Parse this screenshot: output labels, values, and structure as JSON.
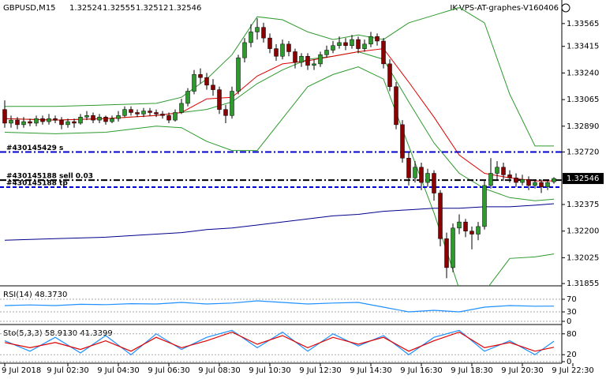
{
  "chart_data": [
    {
      "type": "candlestick",
      "symbol": "GBPUSD,M15",
      "expert": "IK-VPS-AT-graphes-V160406",
      "bull_color": "#2e9a2e",
      "bear_color": "#8b0000",
      "ylim": [
        1.3184,
        1.3372
      ],
      "xlim": [
        -0.75,
        88.25
      ],
      "yticks": [
        1.33565,
        1.33415,
        {
          "value": 1.3324,
          "label": "1.33240"
        },
        1.33065,
        {
          "value": 1.3289,
          "label": "1.32890"
        },
        {
          "value": 1.3272,
          "label": "1.32720"
        },
        1.32375,
        {
          "value": 1.322,
          "label": "1.32200"
        },
        1.32025,
        1.31855
      ],
      "xticks": [
        {
          "value": 0,
          "label": "9 Jul 2018"
        },
        {
          "value": 10,
          "label": "9 Jul 02:30"
        },
        {
          "value": 18,
          "label": "9 Jul 04:30"
        },
        {
          "value": 26,
          "label": "9 Jul 06:30"
        },
        {
          "value": 34,
          "label": "9 Jul 08:30"
        },
        {
          "value": 42,
          "label": "9 Jul 10:30"
        },
        {
          "value": 50,
          "label": "9 Jul 12:30"
        },
        {
          "value": 58,
          "label": "9 Jul 14:30"
        },
        {
          "value": 66,
          "label": "9 Jul 16:30"
        },
        {
          "value": 74,
          "label": "9 Jul 18:30"
        },
        {
          "value": 82,
          "label": "9 Jul 20:30"
        },
        {
          "value": 90,
          "label": "9 Jul 22:30"
        }
      ],
      "open": [
        1.33,
        1.3291,
        1.3293,
        1.329,
        1.3292,
        1.3291,
        1.3294,
        1.3292,
        1.3294,
        1.3293,
        1.329,
        1.3292,
        1.3291,
        1.3295,
        1.3296,
        1.3293,
        1.3295,
        1.3292,
        1.3294,
        1.3296,
        1.33,
        1.3298,
        1.3297,
        1.3299,
        1.3298,
        1.3297,
        1.3296,
        1.3293,
        1.3298,
        1.3304,
        1.3312,
        1.3323,
        1.3321,
        1.3316,
        1.3313,
        1.33,
        1.3296,
        1.3312,
        1.3334,
        1.3344,
        1.3351,
        1.3354,
        1.3347,
        1.334,
        1.3335,
        1.3343,
        1.3338,
        1.3331,
        1.3335,
        1.3329,
        1.333,
        1.3336,
        1.3339,
        1.3342,
        1.3344,
        1.3342,
        1.3346,
        1.334,
        1.3343,
        1.3348,
        1.3345,
        1.333,
        1.3315,
        1.329,
        1.3268,
        1.3255,
        1.3262,
        1.3252,
        1.3258,
        1.3245,
        1.3215,
        1.3196,
        1.3222,
        1.3226,
        1.322,
        1.3218,
        1.3223,
        1.325,
        1.3258,
        1.3262,
        1.3257,
        1.3255,
        1.3252,
        1.3254,
        1.325,
        1.3252,
        1.3249,
        1.32524
      ],
      "high": [
        1.3306,
        1.3296,
        1.3295,
        1.3295,
        1.3294,
        1.3296,
        1.3296,
        1.3297,
        1.3296,
        1.3295,
        1.3294,
        1.3294,
        1.3297,
        1.3299,
        1.3298,
        1.3297,
        1.3296,
        1.3296,
        1.3299,
        1.3302,
        1.3302,
        1.33,
        1.3301,
        1.3301,
        1.33,
        1.3299,
        1.3298,
        1.33,
        1.3307,
        1.3314,
        1.3326,
        1.3327,
        1.3324,
        1.332,
        1.3315,
        1.3303,
        1.3315,
        1.3336,
        1.3347,
        1.3356,
        1.336,
        1.3357,
        1.335,
        1.3343,
        1.3346,
        1.3345,
        1.334,
        1.3337,
        1.3337,
        1.3333,
        1.3338,
        1.3342,
        1.3345,
        1.3348,
        1.3347,
        1.3349,
        1.3348,
        1.3346,
        1.3351,
        1.335,
        1.3347,
        1.3333,
        1.3318,
        1.3293,
        1.3272,
        1.3266,
        1.3265,
        1.3261,
        1.326,
        1.3247,
        1.3219,
        1.3225,
        1.3231,
        1.3228,
        1.3223,
        1.3226,
        1.3253,
        1.3268,
        1.3266,
        1.3265,
        1.326,
        1.3258,
        1.3257,
        1.3256,
        1.3254,
        1.3254,
        1.3254,
        1.32555
      ],
      "low": [
        1.3288,
        1.3288,
        1.3287,
        1.3288,
        1.3289,
        1.3289,
        1.329,
        1.329,
        1.3291,
        1.3287,
        1.3288,
        1.3288,
        1.329,
        1.3293,
        1.3291,
        1.3291,
        1.329,
        1.3291,
        1.3292,
        1.3295,
        1.3296,
        1.3295,
        1.3295,
        1.3296,
        1.3295,
        1.3294,
        1.3291,
        1.3292,
        1.3297,
        1.3302,
        1.331,
        1.3317,
        1.3313,
        1.3309,
        1.3297,
        1.3291,
        1.3294,
        1.331,
        1.3331,
        1.3341,
        1.3346,
        1.3344,
        1.3337,
        1.3332,
        1.3333,
        1.3335,
        1.3327,
        1.3328,
        1.3326,
        1.3326,
        1.3328,
        1.3334,
        1.3337,
        1.334,
        1.3339,
        1.334,
        1.3337,
        1.3338,
        1.3341,
        1.3342,
        1.3327,
        1.3312,
        1.3287,
        1.3265,
        1.325,
        1.3252,
        1.3247,
        1.3249,
        1.324,
        1.321,
        1.3189,
        1.3193,
        1.3218,
        1.3216,
        1.3208,
        1.3214,
        1.3221,
        1.3248,
        1.3254,
        1.3253,
        1.3252,
        1.3249,
        1.325,
        1.3247,
        1.3248,
        1.3245,
        1.3247,
        1.32512
      ],
      "close": [
        1.3291,
        1.3293,
        1.329,
        1.3292,
        1.3291,
        1.3294,
        1.3292,
        1.3294,
        1.3293,
        1.329,
        1.3292,
        1.3291,
        1.3295,
        1.3296,
        1.3293,
        1.3295,
        1.3292,
        1.3294,
        1.3296,
        1.33,
        1.3298,
        1.3297,
        1.3299,
        1.3298,
        1.3297,
        1.3296,
        1.3293,
        1.3298,
        1.3304,
        1.3312,
        1.3323,
        1.3321,
        1.3316,
        1.3313,
        1.33,
        1.3296,
        1.3312,
        1.3334,
        1.3344,
        1.3351,
        1.3354,
        1.3347,
        1.334,
        1.3335,
        1.3343,
        1.3338,
        1.3331,
        1.3335,
        1.3329,
        1.333,
        1.3336,
        1.3339,
        1.3342,
        1.3344,
        1.3342,
        1.3346,
        1.334,
        1.3343,
        1.3348,
        1.3345,
        1.333,
        1.3315,
        1.329,
        1.3268,
        1.3255,
        1.3262,
        1.3252,
        1.3258,
        1.3245,
        1.3215,
        1.3196,
        1.3222,
        1.3226,
        1.322,
        1.3218,
        1.3223,
        1.325,
        1.3258,
        1.3262,
        1.3257,
        1.3255,
        1.3252,
        1.3254,
        1.325,
        1.3252,
        1.3249,
        1.3252,
        1.32546
      ],
      "overlays": [
        {
          "color": "#2e9a2e",
          "x": [
            0,
            8,
            16,
            24,
            28,
            32,
            36,
            40,
            44,
            48,
            52,
            56,
            60,
            64,
            68,
            72,
            76,
            80,
            84,
            87
          ],
          "values": [
            1.3302,
            1.3302,
            1.3303,
            1.3304,
            1.3308,
            1.332,
            1.3336,
            1.3361,
            1.3359,
            1.3351,
            1.3346,
            1.3349,
            1.3346,
            1.3357,
            1.3362,
            1.3367,
            1.3357,
            1.331,
            1.3276,
            1.3276
          ]
        },
        {
          "color": "#2e9a2e",
          "x": [
            0,
            8,
            16,
            24,
            28,
            32,
            36,
            40,
            44,
            48,
            52,
            56,
            60,
            64,
            68,
            72,
            76,
            80,
            84,
            87
          ],
          "values": [
            1.3294,
            1.3293,
            1.3294,
            1.3296,
            1.3298,
            1.33,
            1.3305,
            1.3317,
            1.3326,
            1.3333,
            1.3335,
            1.3338,
            1.3333,
            1.3305,
            1.3278,
            1.3258,
            1.3248,
            1.3242,
            1.324,
            1.3241
          ]
        },
        {
          "color": "#2e9a2e",
          "x": [
            0,
            8,
            16,
            24,
            28,
            32,
            36,
            40,
            44,
            48,
            52,
            56,
            60,
            64,
            68,
            72,
            76,
            80,
            84,
            87
          ],
          "values": [
            1.3285,
            1.3284,
            1.3285,
            1.3289,
            1.3288,
            1.3279,
            1.3273,
            1.3273,
            1.3294,
            1.3315,
            1.3323,
            1.3328,
            1.332,
            1.3276,
            1.3232,
            1.3182,
            1.318,
            1.3202,
            1.3203,
            1.3205
          ]
        },
        {
          "color": "#e00000",
          "x": [
            0,
            8,
            16,
            24,
            28,
            32,
            36,
            40,
            44,
            48,
            52,
            56,
            60,
            64,
            68,
            72,
            76,
            80,
            84,
            87
          ],
          "values": [
            1.3294,
            1.3293,
            1.3294,
            1.3296,
            1.3298,
            1.3307,
            1.3308,
            1.3322,
            1.333,
            1.3332,
            1.3335,
            1.3338,
            1.334,
            1.3318,
            1.3295,
            1.327,
            1.3258,
            1.3255,
            1.3253,
            1.3253
          ]
        },
        {
          "color": "#00008b",
          "x": [
            0,
            8,
            16,
            24,
            28,
            32,
            36,
            40,
            44,
            48,
            52,
            56,
            60,
            64,
            68,
            72,
            76,
            80,
            84,
            87
          ],
          "values": [
            1.3214,
            1.3215,
            1.3216,
            1.3218,
            1.3219,
            1.3221,
            1.3222,
            1.3224,
            1.3226,
            1.3228,
            1.323,
            1.3231,
            1.3233,
            1.3234,
            1.3235,
            1.3235,
            1.3236,
            1.3236,
            1.3237,
            1.3238
          ]
        }
      ],
      "levels": [
        {
          "label": "#430145429 s",
          "value": 1.3272,
          "color": "#0000cd",
          "style": "dash-dot"
        },
        {
          "label": "#430145188 sell 0.03",
          "value": 1.32535,
          "color": "#000000",
          "style": "dash-dot"
        },
        {
          "label": "#430145188 tp",
          "value": 1.32489,
          "color": "#0000cd",
          "style": "dash"
        }
      ]
    },
    {
      "type": "line",
      "title": "RSI(14) 48.3730",
      "ylim": [
        0,
        100
      ],
      "yticks": [
        0,
        30,
        70
      ],
      "xlim": [
        -0.75,
        88.25
      ],
      "series": [
        {
          "color": "#1e90ff",
          "x": [
            0,
            4,
            8,
            12,
            16,
            20,
            24,
            28,
            32,
            36,
            40,
            44,
            48,
            52,
            56,
            60,
            64,
            68,
            72,
            76,
            80,
            84,
            87
          ],
          "values": [
            50,
            52,
            50,
            54,
            53,
            56,
            55,
            60,
            55,
            58,
            65,
            60,
            55,
            58,
            60,
            45,
            30,
            35,
            30,
            45,
            50,
            48,
            48.373
          ]
        }
      ]
    },
    {
      "type": "line",
      "title": "Sto(5,3,3) 58.9130 41.3399",
      "ylim": [
        0,
        100
      ],
      "yticks": [
        0,
        20,
        80
      ],
      "xlim": [
        -0.75,
        88.25
      ],
      "series": [
        {
          "color": "#1e90ff",
          "x": [
            0,
            4,
            8,
            12,
            16,
            20,
            24,
            28,
            32,
            36,
            40,
            44,
            48,
            52,
            56,
            60,
            64,
            68,
            72,
            76,
            80,
            84,
            87
          ],
          "values": [
            60,
            30,
            70,
            25,
            75,
            20,
            80,
            35,
            70,
            90,
            40,
            85,
            30,
            80,
            45,
            75,
            20,
            70,
            90,
            30,
            60,
            20,
            58.913
          ]
        },
        {
          "color": "#e00000",
          "x": [
            0,
            4,
            8,
            12,
            16,
            20,
            24,
            28,
            32,
            36,
            40,
            44,
            48,
            52,
            56,
            60,
            64,
            68,
            72,
            76,
            80,
            84,
            87
          ],
          "values": [
            55,
            40,
            55,
            35,
            60,
            30,
            70,
            40,
            60,
            85,
            50,
            75,
            40,
            70,
            50,
            70,
            30,
            60,
            85,
            40,
            55,
            30,
            41.3399
          ]
        }
      ]
    }
  ]
}
